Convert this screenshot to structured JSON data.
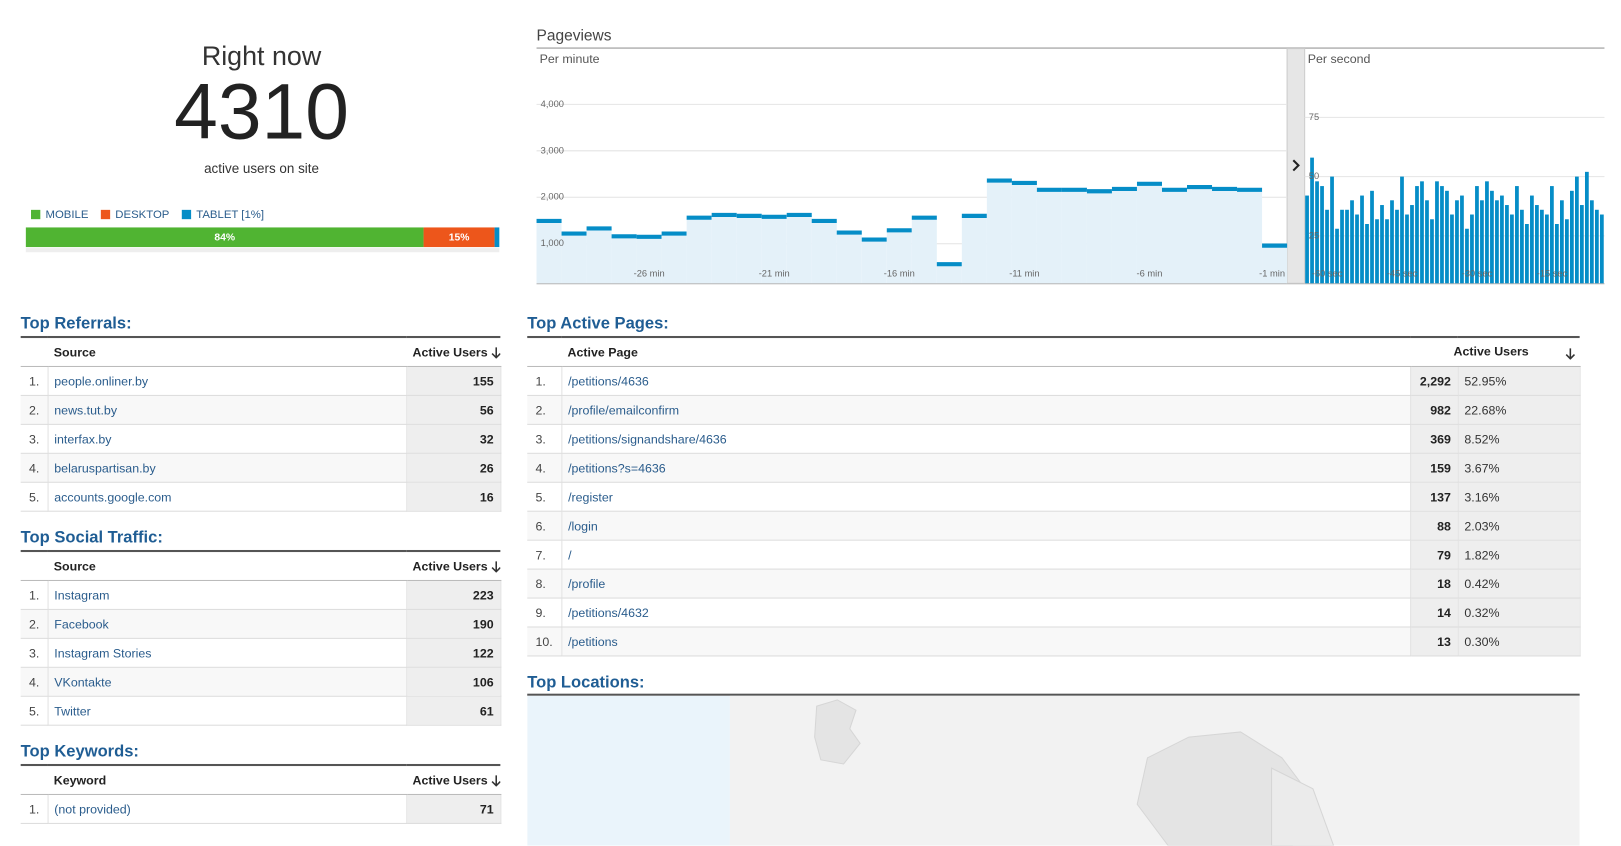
{
  "right_now": {
    "title": "Right now",
    "count": 4310,
    "subtitle": "active users on site"
  },
  "devices": {
    "series": [
      {
        "name": "MOBILE",
        "value": 84,
        "label": "84%",
        "color": "#50b432"
      },
      {
        "name": "DESKTOP",
        "value": 15,
        "label": "15%",
        "color": "#ed561b"
      },
      {
        "name": "TABLET [1%]",
        "value": 1,
        "color": "#058dc7"
      }
    ]
  },
  "pageviews": {
    "title": "Pageviews"
  },
  "chart_data": [
    {
      "type": "step",
      "subtitle": "Per minute",
      "categories": [
        null,
        null,
        null,
        null,
        "-26 min",
        null,
        null,
        null,
        null,
        "-21 min",
        null,
        null,
        null,
        null,
        "-16 min",
        null,
        null,
        null,
        null,
        "-11 min",
        null,
        null,
        null,
        null,
        "-6 min",
        null,
        null,
        null,
        null,
        "-1 min"
      ],
      "values": [
        1490,
        1220,
        1330,
        1160,
        1150,
        1220,
        1560,
        1620,
        1600,
        1580,
        1620,
        1490,
        1240,
        1090,
        1290,
        1560,
        560,
        1600,
        2360,
        2310,
        2160,
        2160,
        2130,
        2180,
        2290,
        2160,
        2220,
        2180,
        2160,
        960
      ],
      "color": "#058dc7",
      "fill_color": "#e4f1f9",
      "ylim": [
        150,
        5200
      ],
      "yticks": [
        {
          "value": 1000,
          "label": "1,000"
        },
        {
          "value": 2000,
          "label": "2,000"
        },
        {
          "value": 3000,
          "label": "3,000"
        },
        {
          "value": 4000,
          "label": "4,000"
        }
      ],
      "grid": true
    },
    {
      "type": "bar",
      "subtitle": "Per second",
      "categories": [
        null,
        null,
        null,
        null,
        "-60 sec",
        null,
        null,
        null,
        null,
        null,
        null,
        null,
        null,
        null,
        null,
        null,
        null,
        null,
        null,
        "-45 sec",
        null,
        null,
        null,
        null,
        null,
        null,
        null,
        null,
        null,
        null,
        null,
        null,
        null,
        null,
        "-30 sec",
        null,
        null,
        null,
        null,
        null,
        null,
        null,
        null,
        null,
        null,
        null,
        null,
        null,
        null,
        "-15 sec",
        null,
        null,
        null,
        null,
        null,
        null,
        null,
        null,
        null,
        null
      ],
      "values": [
        42,
        58,
        48,
        46,
        36,
        50,
        28,
        36,
        36,
        40,
        34,
        42,
        30,
        44,
        32,
        38,
        32,
        40,
        36,
        50,
        34,
        38,
        46,
        48,
        40,
        32,
        48,
        46,
        44,
        34,
        40,
        42,
        28,
        34,
        46,
        40,
        48,
        44,
        40,
        42,
        38,
        34,
        46,
        36,
        30,
        42,
        38,
        36,
        34,
        46,
        30,
        40,
        32,
        44,
        50,
        38,
        52,
        40,
        36,
        34
      ],
      "color": "#058dc7",
      "ylim": [
        5,
        104
      ],
      "yticks": [
        25,
        50,
        75
      ],
      "grid": true
    }
  ],
  "top_referrals": {
    "title": "Top Referrals:",
    "columns": [
      "Source",
      "Active Users"
    ],
    "rows": [
      [
        "1.",
        "people.onliner.by",
        155
      ],
      [
        "2.",
        "news.tut.by",
        56
      ],
      [
        "3.",
        "interfax.by",
        32
      ],
      [
        "4.",
        "belaruspartisan.by",
        26
      ],
      [
        "5.",
        "accounts.google.com",
        16
      ]
    ]
  },
  "top_social": {
    "title": "Top Social Traffic:",
    "columns": [
      "Source",
      "Active Users"
    ],
    "rows": [
      [
        "1.",
        "Instagram",
        223
      ],
      [
        "2.",
        "Facebook",
        190
      ],
      [
        "3.",
        "Instagram Stories",
        122
      ],
      [
        "4.",
        "VKontakte",
        106
      ],
      [
        "5.",
        "Twitter",
        61
      ]
    ]
  },
  "top_keywords": {
    "title": "Top Keywords:",
    "columns": [
      "Keyword",
      "Active Users"
    ],
    "rows": [
      [
        "1.",
        "(not provided)",
        71
      ]
    ]
  },
  "top_pages": {
    "title": "Top Active Pages:",
    "columns": [
      "Active Page",
      "Active Users"
    ],
    "rows": [
      [
        "1.",
        "/petitions/4636",
        "2,292",
        "52.95%"
      ],
      [
        "2.",
        "/profile/emailconfirm",
        982,
        "22.68%"
      ],
      [
        "3.",
        "/petitions/signandshare/4636",
        369,
        "8.52%"
      ],
      [
        "4.",
        "/petitions?s=4636",
        159,
        "3.67%"
      ],
      [
        "5.",
        "/register",
        137,
        "3.16%"
      ],
      [
        "6.",
        "/login",
        88,
        "2.03%"
      ],
      [
        "7.",
        "/",
        79,
        "1.82%"
      ],
      [
        "8.",
        "/profile",
        18,
        "0.42%"
      ],
      [
        "9.",
        "/petitions/4632",
        14,
        "0.32%"
      ],
      [
        "10.",
        "/petitions",
        13,
        "0.30%"
      ]
    ]
  },
  "top_locations": {
    "title": "Top Locations:"
  }
}
